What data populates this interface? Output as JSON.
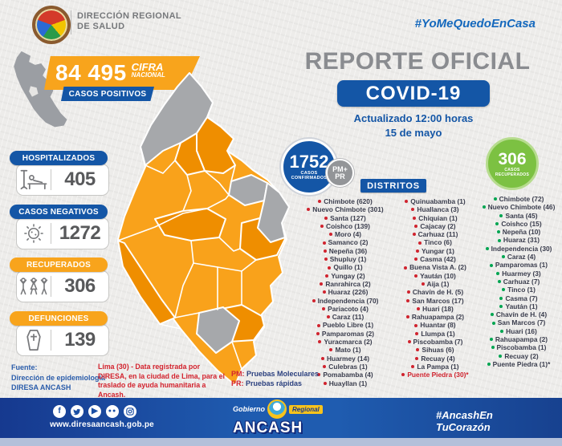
{
  "header": {
    "org_line1": "DIRECCIÓN REGIONAL",
    "org_line2": "DE SALUD",
    "hashtag": "#YoMeQuedoEnCasa"
  },
  "national": {
    "value": "84 495",
    "label_line1": "CIFRA",
    "label_line2": "NACIONAL",
    "sub_label": "CASOS POSITIVOS"
  },
  "title": {
    "line1": "REPORTE OFICIAL",
    "line2": "COVID-19",
    "updated": "Actualizado 12:00 horas",
    "date": "15 de mayo"
  },
  "stats": [
    {
      "label": "HOSPITALIZADOS",
      "value": "405",
      "icon": "hospital-bed-icon",
      "pill_color": "#1456a6"
    },
    {
      "label": "CASOS NEGATIVOS",
      "value": "1272",
      "icon": "virus-icon",
      "pill_color": "#1456a6"
    },
    {
      "label": "RECUPERADOS",
      "value": "306",
      "icon": "people-celebrating-icon",
      "pill_color": "#f8a41c"
    },
    {
      "label": "DEFUNCIONES",
      "value": "139",
      "icon": "coffin-icon",
      "pill_color": "#f8a41c"
    }
  ],
  "confirmed_circle": {
    "value": "1752",
    "label_line1": "CASOS",
    "label_line2": "CONFIRMADOS",
    "badge_line1": "PM+",
    "badge_line2": "PR"
  },
  "recovered_circle": {
    "value": "306",
    "label_line1": "CASOS",
    "label_line2": "RECUPERADOS"
  },
  "districts": {
    "header": "DISTRITOS",
    "confirmed_col1": [
      {
        "label": "Chimbote (620)"
      },
      {
        "label": "Nuevo Chimbote (301)"
      },
      {
        "label": "Santa (127)"
      },
      {
        "label": "Coishco (139)"
      },
      {
        "label": "Moro (4)"
      },
      {
        "label": "Samanco (2)"
      },
      {
        "label": "Nepeña (36)"
      },
      {
        "label": "Shupluy (1)"
      },
      {
        "label": "Quillo (1)"
      },
      {
        "label": "Yungay (2)"
      },
      {
        "label": "Ranrahirca (2)"
      },
      {
        "label": "Huaraz (226)"
      },
      {
        "label": "Independencia (70)"
      },
      {
        "label": "Pariacoto (4)"
      },
      {
        "label": "Caraz (11)"
      },
      {
        "label": "Pueblo Libre (1)"
      },
      {
        "label": "Pamparomas (2)"
      },
      {
        "label": "Yuracmarca (2)"
      },
      {
        "label": "Mato (1)"
      },
      {
        "label": "Huarmey (14)"
      },
      {
        "label": "Culebras (1)"
      },
      {
        "label": "Pomabamba (4)"
      },
      {
        "label": "Huayllan (1)"
      }
    ],
    "confirmed_col2": [
      {
        "label": "Quinuabamba (1)"
      },
      {
        "label": "Huallanca (3)"
      },
      {
        "label": "Chiquian (1)"
      },
      {
        "label": "Cajacay (2)"
      },
      {
        "label": "Carhuaz (11)"
      },
      {
        "label": "Tinco (6)"
      },
      {
        "label": "Yungar (1)"
      },
      {
        "label": "Casma (42)"
      },
      {
        "label": "Buena Vista A. (2)"
      },
      {
        "label": "Yaután (10)"
      },
      {
        "label": "Aija (1)"
      },
      {
        "label": "Chavín de H. (5)"
      },
      {
        "label": "San Marcos (17)"
      },
      {
        "label": "Huari (18)"
      },
      {
        "label": "Rahuapampa (2)"
      },
      {
        "label": "Huantar (8)"
      },
      {
        "label": "Llumpa (1)"
      },
      {
        "label": "Piscobamba (7)"
      },
      {
        "label": "Sihuas (6)"
      },
      {
        "label": "Recuay (4)"
      },
      {
        "label": "La Pampa (1)"
      },
      {
        "label": "Puente Piedra (30)*",
        "accent": true
      }
    ],
    "recovered_col": [
      {
        "label": "Chimbote (72)"
      },
      {
        "label": "Nuevo Chimbote (46)"
      },
      {
        "label": "Santa (45)"
      },
      {
        "label": "Coishco (15)"
      },
      {
        "label": "Nepeña (10)"
      },
      {
        "label": "Huaraz (31)"
      },
      {
        "label": "Independencia (30)"
      },
      {
        "label": "Caraz (4)"
      },
      {
        "label": "Pamparomas (1)"
      },
      {
        "label": "Huarmey (3)"
      },
      {
        "label": "Carhuaz (7)"
      },
      {
        "label": "Tinco (1)"
      },
      {
        "label": "Casma (7)"
      },
      {
        "label": "Yaután (1)"
      },
      {
        "label": "Chavín de H. (4)"
      },
      {
        "label": "San Marcos (7)"
      },
      {
        "label": "Huari (16)"
      },
      {
        "label": "Rahuapampa (2)"
      },
      {
        "label": "Piscobamba (1)"
      },
      {
        "label": "Recuay (2)"
      },
      {
        "label": "Puente Piedra (1)*"
      }
    ]
  },
  "source": {
    "line1": "Fuente:",
    "line2": "Dirección de epidemiología",
    "line3": "DIRESA  ANCASH"
  },
  "lima_note": "Lima (30) - Data registrada por DIRESA, en la ciudad de Lima, para el traslado de ayuda humanitaria a Ancash.",
  "legend": [
    {
      "abbr": "PM:",
      "text": "Pruebas Moleculares"
    },
    {
      "abbr": "PR:",
      "text": "Pruebas rápidas"
    }
  ],
  "footer": {
    "website": "www.diresaancash.gob.pe",
    "social": [
      "facebook",
      "twitter",
      "youtube",
      "flickr",
      "instagram"
    ],
    "gov_line1": "Gobierno",
    "gov_line2": "Regional",
    "gov_name": "ANCASH",
    "hashtag_line1": "#AncashEn",
    "hashtag_line2": "TuCorazón"
  },
  "colors": {
    "blue": "#1456a6",
    "orange": "#f8a41c",
    "green": "#7cc142",
    "red": "#d0232e",
    "green_bullet": "#00a551",
    "map_orange": "#f9a21b",
    "map_orange_dark": "#ef8e00",
    "map_gray": "#a6a8ab"
  }
}
